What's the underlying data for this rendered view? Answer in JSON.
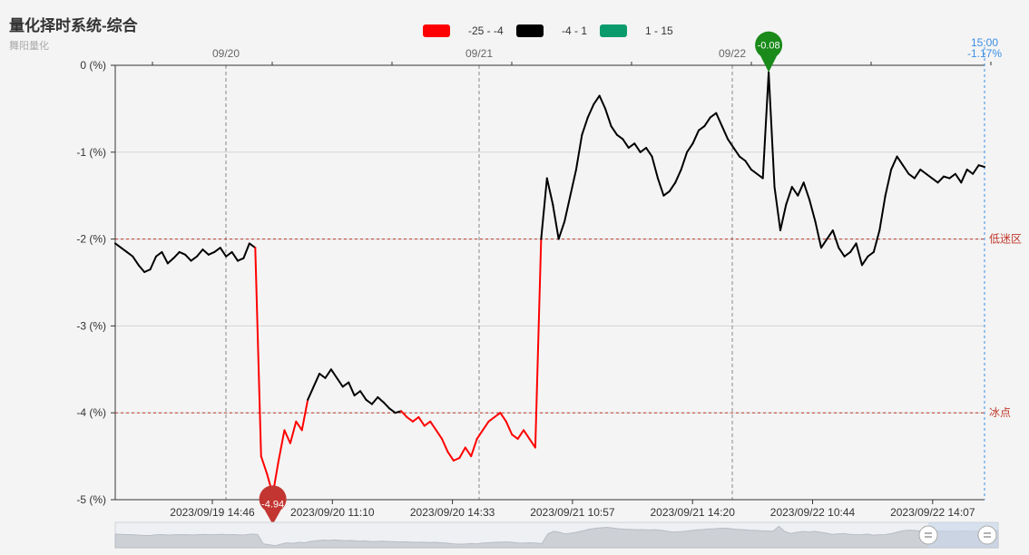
{
  "header": {
    "title": "量化择时系统-综合",
    "subtitle": "舞阳量化"
  },
  "legend": [
    {
      "label": "-25 - -4",
      "color": "#ff0000"
    },
    {
      "label": "-4 - 1",
      "color": "#000000"
    },
    {
      "label": "1 - 15",
      "color": "#0a9b6c"
    }
  ],
  "chart_data": {
    "type": "line",
    "ylim": [
      -5,
      0
    ],
    "y_ticks": [
      {
        "value": 0,
        "label": "0 (%)"
      },
      {
        "value": -1,
        "label": "-1 (%)"
      },
      {
        "value": -2,
        "label": "-2 (%)"
      },
      {
        "value": -3,
        "label": "-3 (%)"
      },
      {
        "value": -4,
        "label": "-4 (%)"
      },
      {
        "value": -5,
        "label": "-5 (%)"
      }
    ],
    "x_tick_labels": [
      "2023/09/19 14:46",
      "2023/09/20 11:10",
      "2023/09/20 14:33",
      "2023/09/21 10:57",
      "2023/09/21 14:20",
      "2023/09/22 10:44",
      "2023/09/22 14:07"
    ],
    "top_axis_labels": [
      "09/20",
      "09/21",
      "09/22"
    ],
    "reference_lines": [
      {
        "value": -2,
        "label": "低迷区",
        "color": "#c0392b"
      },
      {
        "value": -4,
        "label": "冰点",
        "color": "#c0392b"
      }
    ],
    "markers": [
      {
        "type": "min",
        "label": "-4.94",
        "value": -4.94,
        "color": "#c23531"
      },
      {
        "type": "max",
        "label": "-0.08",
        "value": -0.08,
        "color": "#1a8a1a"
      }
    ],
    "current": {
      "time": "15:00",
      "value_label": "-1.17%",
      "value": -1.17
    },
    "color_ranges": [
      {
        "min": -25,
        "max": -4,
        "color": "#ff0000"
      },
      {
        "min": -4,
        "max": 1,
        "color": "#000000"
      },
      {
        "min": 1,
        "max": 15,
        "color": "#0a9b6c"
      }
    ],
    "series": [
      {
        "values": [
          -2.05,
          -2.1,
          -2.15,
          -2.2,
          -2.3,
          -2.38,
          -2.35,
          -2.2,
          -2.15,
          -2.28,
          -2.22,
          -2.15,
          -2.18,
          -2.25,
          -2.2,
          -2.12,
          -2.18,
          -2.15,
          -2.1,
          -2.2,
          -2.15,
          -2.25,
          -2.22,
          -2.05,
          -2.1,
          -4.5,
          -4.7,
          -4.94,
          -4.55,
          -4.2,
          -4.35,
          -4.1,
          -4.2,
          -3.85,
          -3.7,
          -3.55,
          -3.6,
          -3.5,
          -3.6,
          -3.7,
          -3.65,
          -3.8,
          -3.75,
          -3.85,
          -3.9,
          -3.82,
          -3.88,
          -3.95,
          -4.0,
          -3.98,
          -4.05,
          -4.1,
          -4.05,
          -4.15,
          -4.1,
          -4.2,
          -4.3,
          -4.45,
          -4.55,
          -4.52,
          -4.4,
          -4.5,
          -4.3,
          -4.2,
          -4.1,
          -4.05,
          -4.0,
          -4.1,
          -4.25,
          -4.3,
          -4.2,
          -4.3,
          -4.4,
          -2.0,
          -1.3,
          -1.6,
          -2.0,
          -1.8,
          -1.5,
          -1.2,
          -0.8,
          -0.6,
          -0.45,
          -0.35,
          -0.5,
          -0.7,
          -0.8,
          -0.85,
          -0.95,
          -0.9,
          -1.0,
          -0.95,
          -1.05,
          -1.3,
          -1.5,
          -1.45,
          -1.35,
          -1.2,
          -1.0,
          -0.9,
          -0.75,
          -0.7,
          -0.6,
          -0.55,
          -0.7,
          -0.85,
          -0.95,
          -1.05,
          -1.1,
          -1.2,
          -1.25,
          -1.3,
          -0.08,
          -1.4,
          -1.9,
          -1.6,
          -1.4,
          -1.5,
          -1.35,
          -1.55,
          -1.8,
          -2.1,
          -2.0,
          -1.9,
          -2.1,
          -2.2,
          -2.15,
          -2.05,
          -2.3,
          -2.2,
          -2.15,
          -1.9,
          -1.5,
          -1.2,
          -1.05,
          -1.15,
          -1.25,
          -1.3,
          -1.2,
          -1.25,
          -1.3,
          -1.35,
          -1.28,
          -1.3,
          -1.25,
          -1.35,
          -1.2,
          -1.25,
          -1.15,
          -1.17
        ]
      }
    ]
  }
}
